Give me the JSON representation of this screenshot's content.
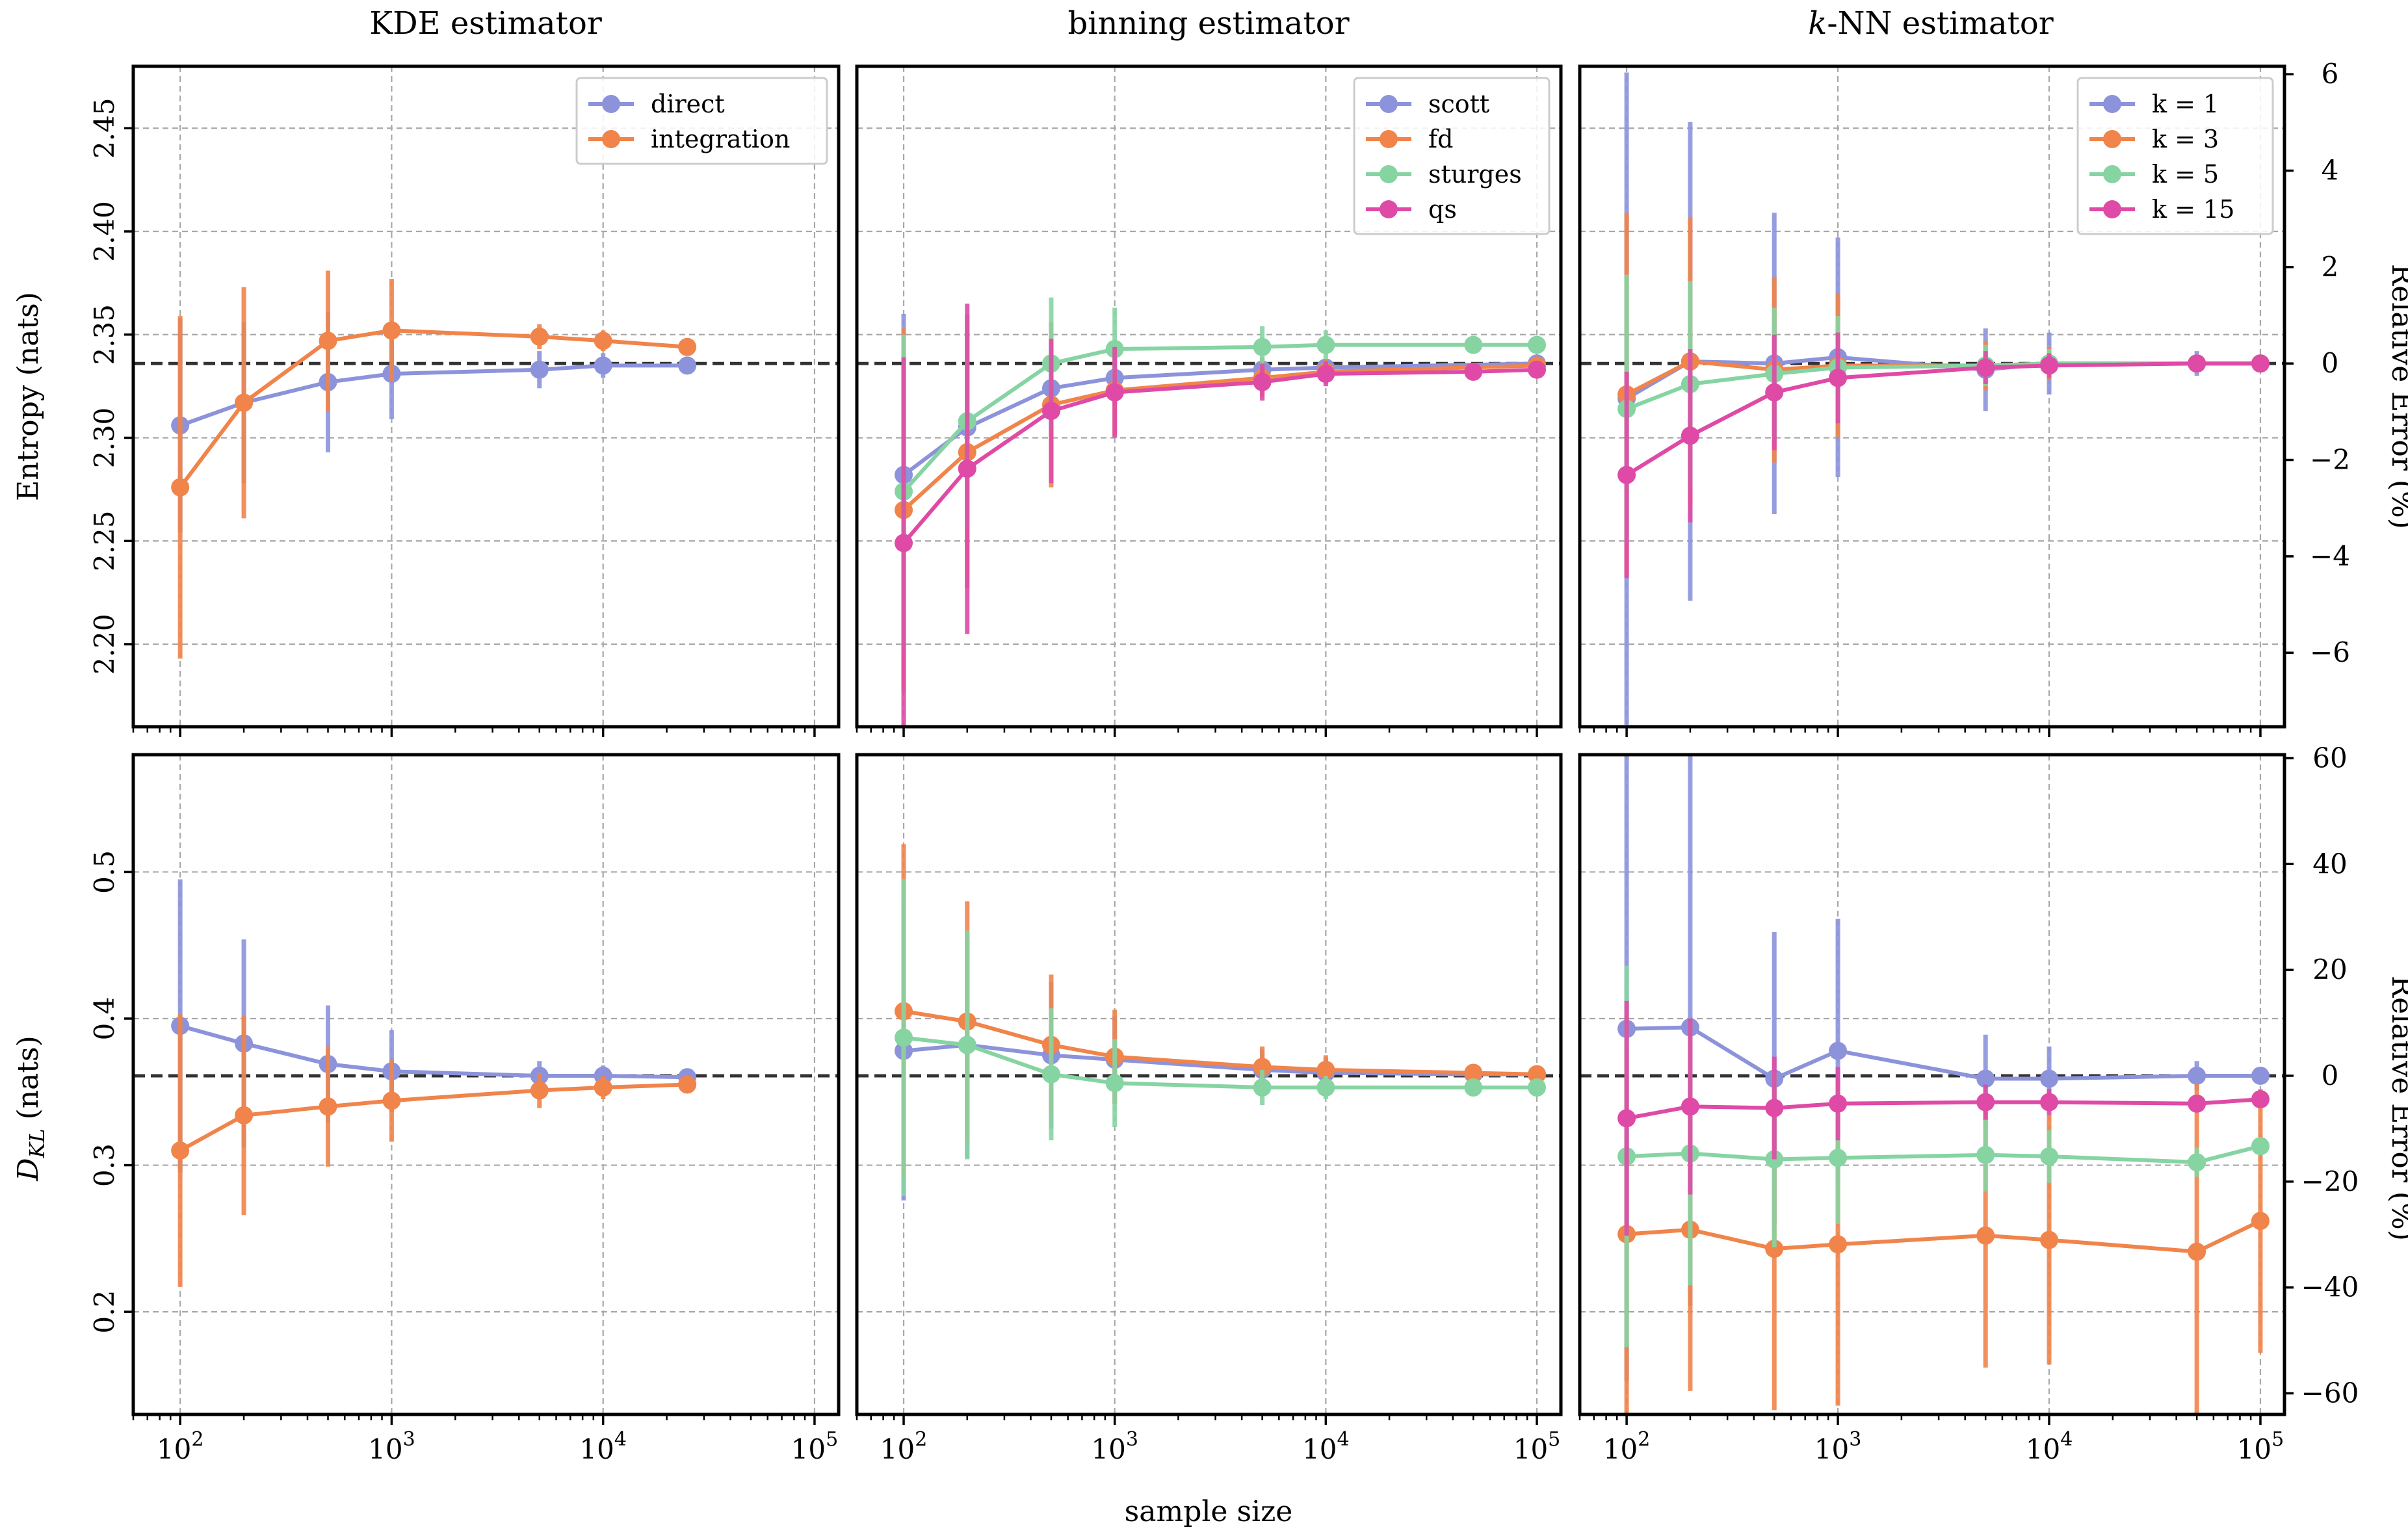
{
  "figure": {
    "column_titles": [
      "KDE estimator",
      "binning estimator",
      "k-NN estimator"
    ],
    "column_title_italic_prefix": [
      "",
      "",
      "k"
    ],
    "xlabel": "sample size",
    "row_ylabels": [
      "Entropy (nats)",
      "D_KL (nats)"
    ],
    "right_ylabel": "Relative Error (%)",
    "x_tick_labels": [
      "10^2",
      "10^3",
      "10^4",
      "10^5"
    ]
  },
  "colors": {
    "blue": "#8c93db",
    "orange": "#f0844a",
    "green": "#86d4a2",
    "magenta": "#de4aa6",
    "reference": "#333333",
    "grid": "#a8a8a8"
  },
  "chart_data": [
    {
      "type": "line",
      "id": "p00",
      "row": 0,
      "col": 0,
      "title": "KDE estimator",
      "ylabel": "Entropy (nats)",
      "xscale": "log",
      "xlim": [
        60,
        130000
      ],
      "ylim": [
        2.16,
        2.48
      ],
      "yticks": [
        2.2,
        2.25,
        2.3,
        2.35,
        2.4,
        2.45
      ],
      "ytick_labels": [
        "2.20",
        "2.25",
        "2.30",
        "2.35",
        "2.40",
        "2.45"
      ],
      "reference": 2.336,
      "legend": {
        "loc": "upper right",
        "entries": [
          "direct",
          "integration"
        ]
      },
      "series": [
        {
          "name": "direct",
          "color": "blue",
          "x": [
            100,
            200,
            500,
            1000,
            5000,
            10000,
            25000
          ],
          "y": [
            2.306,
            2.317,
            2.327,
            2.331,
            2.333,
            2.335,
            2.335
          ],
          "err": [
            0.052,
            0.039,
            0.034,
            0.022,
            0.009,
            0.006,
            0.003
          ]
        },
        {
          "name": "integration",
          "color": "orange",
          "x": [
            100,
            200,
            500,
            1000,
            5000,
            10000,
            25000
          ],
          "y": [
            2.276,
            2.317,
            2.347,
            2.352,
            2.349,
            2.347,
            2.344
          ],
          "err": [
            0.083,
            0.056,
            0.034,
            0.025,
            0.006,
            0.005,
            0.003
          ]
        }
      ]
    },
    {
      "type": "line",
      "id": "p01",
      "row": 0,
      "col": 1,
      "title": "binning estimator",
      "xscale": "log",
      "xlim": [
        60,
        130000
      ],
      "ylim": [
        2.16,
        2.48
      ],
      "reference": 2.336,
      "legend": {
        "loc": "upper right",
        "entries": [
          "scott",
          "fd",
          "sturges",
          "qs"
        ]
      },
      "series": [
        {
          "name": "scott",
          "color": "blue",
          "x": [
            100,
            200,
            500,
            1000,
            5000,
            10000,
            100000
          ],
          "y": [
            2.282,
            2.305,
            2.324,
            2.329,
            2.333,
            2.334,
            2.336
          ],
          "err": [
            0.078,
            0.045,
            0.022,
            0.013,
            0.006,
            0.004,
            0.002
          ]
        },
        {
          "name": "fd",
          "color": "orange",
          "x": [
            100,
            200,
            500,
            1000,
            5000,
            10000,
            100000
          ],
          "y": [
            2.265,
            2.293,
            2.316,
            2.323,
            2.329,
            2.332,
            2.335
          ],
          "err": [
            0.088,
            0.066,
            0.04,
            0.022,
            0.009,
            0.006,
            0.003
          ]
        },
        {
          "name": "sturges",
          "color": "green",
          "x": [
            100,
            200,
            500,
            1000,
            5000,
            10000,
            50000,
            100000
          ],
          "y": [
            2.274,
            2.308,
            2.336,
            2.343,
            2.344,
            2.345,
            2.345,
            2.345
          ],
          "err": [
            0.076,
            0.052,
            0.032,
            0.02,
            0.01,
            0.007,
            0.004,
            0.002
          ]
        },
        {
          "name": "qs",
          "color": "magenta",
          "x": [
            100,
            200,
            500,
            1000,
            5000,
            10000,
            50000,
            100000
          ],
          "y": [
            2.249,
            2.285,
            2.313,
            2.322,
            2.327,
            2.331,
            2.332,
            2.333
          ],
          "err": [
            0.09,
            0.08,
            0.035,
            0.022,
            0.009,
            0.006,
            0.004,
            0.003
          ]
        }
      ]
    },
    {
      "type": "line",
      "id": "p02",
      "row": 0,
      "col": 2,
      "title": "k-NN estimator",
      "xscale": "log",
      "xlim": [
        60,
        130000
      ],
      "ylim": [
        2.16,
        2.48
      ],
      "reference": 2.336,
      "right_axis": {
        "label": "Relative Error (%)",
        "yticks": [
          -6,
          -4,
          -2,
          0,
          2,
          4,
          6
        ],
        "ytick_labels": [
          "−6",
          "−4",
          "−2",
          "0",
          "2",
          "4",
          "6"
        ]
      },
      "legend": {
        "loc": "upper right",
        "entries": [
          "k = 1",
          "k = 3",
          "k = 5",
          "k = 15"
        ]
      },
      "series": [
        {
          "name": "k = 1",
          "color": "blue",
          "x": [
            100,
            200,
            500,
            1000,
            5000,
            10000,
            50000,
            100000
          ],
          "y": [
            2.319,
            2.337,
            2.336,
            2.339,
            2.333,
            2.336,
            2.336,
            2.336
          ],
          "err": [
            0.158,
            0.116,
            0.073,
            0.058,
            0.02,
            0.015,
            0.006,
            0.003
          ]
        },
        {
          "name": "k = 3",
          "color": "orange",
          "x": [
            100,
            200,
            500,
            1000,
            5000,
            10000,
            50000,
            100000
          ],
          "y": [
            2.321,
            2.337,
            2.333,
            2.335,
            2.335,
            2.336,
            2.336,
            2.336
          ],
          "err": [
            0.088,
            0.07,
            0.045,
            0.035,
            0.012,
            0.008,
            0.004,
            0.002
          ]
        },
        {
          "name": "k = 5",
          "color": "green",
          "x": [
            100,
            200,
            500,
            1000,
            5000,
            10000,
            50000,
            100000
          ],
          "y": [
            2.314,
            2.326,
            2.331,
            2.334,
            2.335,
            2.336,
            2.336,
            2.336
          ],
          "err": [
            0.065,
            0.05,
            0.032,
            0.025,
            0.01,
            0.007,
            0.003,
            0.002
          ]
        },
        {
          "name": "k = 15",
          "color": "magenta",
          "x": [
            100,
            200,
            500,
            1000,
            5000,
            10000,
            50000,
            100000
          ],
          "y": [
            2.282,
            2.301,
            2.322,
            2.329,
            2.334,
            2.335,
            2.336,
            2.336
          ],
          "err": [
            0.05,
            0.042,
            0.028,
            0.022,
            0.008,
            0.006,
            0.003,
            0.002
          ]
        }
      ]
    },
    {
      "type": "line",
      "id": "p10",
      "row": 1,
      "col": 0,
      "ylabel": "D_KL (nats)",
      "xscale": "log",
      "xlim": [
        60,
        130000
      ],
      "ylim": [
        0.13,
        0.58
      ],
      "yticks": [
        0.2,
        0.3,
        0.4,
        0.5
      ],
      "ytick_labels": [
        "0.2",
        "0.3",
        "0.4",
        "0.5"
      ],
      "reference": 0.361,
      "series": [
        {
          "name": "direct",
          "color": "blue",
          "x": [
            100,
            200,
            500,
            1000,
            5000,
            10000,
            25000
          ],
          "y": [
            0.395,
            0.383,
            0.369,
            0.364,
            0.361,
            0.361,
            0.36
          ],
          "err": [
            0.1,
            0.071,
            0.04,
            0.028,
            0.01,
            0.007,
            0.004
          ]
        },
        {
          "name": "integration",
          "color": "orange",
          "x": [
            100,
            200,
            500,
            1000,
            5000,
            10000,
            25000
          ],
          "y": [
            0.31,
            0.334,
            0.34,
            0.344,
            0.351,
            0.353,
            0.355
          ],
          "err": [
            0.093,
            0.068,
            0.041,
            0.028,
            0.012,
            0.008,
            0.004
          ]
        }
      ]
    },
    {
      "type": "line",
      "id": "p11",
      "row": 1,
      "col": 1,
      "xscale": "log",
      "xlim": [
        60,
        130000
      ],
      "ylim": [
        0.13,
        0.58
      ],
      "reference": 0.361,
      "series": [
        {
          "name": "scott",
          "color": "blue",
          "x": [
            100,
            200,
            500,
            1000,
            5000,
            10000,
            50000,
            100000
          ],
          "y": [
            0.378,
            0.382,
            0.375,
            0.372,
            0.365,
            0.363,
            0.362,
            0.362
          ],
          "err": [
            0.102,
            0.077,
            0.05,
            0.03,
            0.014,
            0.01,
            0.005,
            0.003
          ]
        },
        {
          "name": "fd",
          "color": "orange",
          "x": [
            100,
            200,
            500,
            1000,
            5000,
            10000,
            50000,
            100000
          ],
          "y": [
            0.405,
            0.398,
            0.382,
            0.374,
            0.367,
            0.365,
            0.363,
            0.362
          ],
          "err": [
            0.114,
            0.082,
            0.048,
            0.032,
            0.014,
            0.01,
            0.005,
            0.003
          ]
        },
        {
          "name": "sturges",
          "color": "green",
          "x": [
            100,
            200,
            500,
            1000,
            5000,
            10000,
            50000,
            100000
          ],
          "y": [
            0.387,
            0.382,
            0.362,
            0.356,
            0.353,
            0.353,
            0.353,
            0.353
          ],
          "err": [
            0.108,
            0.078,
            0.045,
            0.03,
            0.012,
            0.008,
            0.004,
            0.003
          ]
        }
      ]
    },
    {
      "type": "line",
      "id": "p12",
      "row": 1,
      "col": 2,
      "xscale": "log",
      "xlim": [
        60,
        130000
      ],
      "ylim": [
        0.13,
        0.58
      ],
      "reference": 0.361,
      "right_axis": {
        "label": "Relative Error (%)",
        "yticks": [
          -60,
          -40,
          -20,
          0,
          20,
          40,
          60
        ],
        "ytick_labels": [
          "−60",
          "−40",
          "−20",
          "0",
          "20",
          "40",
          "60"
        ]
      },
      "series": [
        {
          "name": "k = 1",
          "color": "blue",
          "x": [
            100,
            200,
            500,
            1000,
            5000,
            10000,
            50000,
            100000
          ],
          "y": [
            0.393,
            0.394,
            0.359,
            0.378,
            0.359,
            0.359,
            0.361,
            0.361
          ],
          "err": [
            0.24,
            0.19,
            0.1,
            0.09,
            0.03,
            0.022,
            0.01,
            0.006
          ]
        },
        {
          "name": "k = 3",
          "color": "orange",
          "x": [
            100,
            200,
            500,
            1000,
            5000,
            10000,
            50000,
            100000
          ],
          "y": [
            0.253,
            0.256,
            0.243,
            0.246,
            0.252,
            0.249,
            0.241,
            0.262
          ],
          "err": [
            0.125,
            0.11,
            0.11,
            0.11,
            0.09,
            0.085,
            0.115,
            0.09
          ]
        },
        {
          "name": "k = 5",
          "color": "green",
          "x": [
            100,
            200,
            500,
            1000,
            5000,
            10000,
            50000,
            100000
          ],
          "y": [
            0.306,
            0.308,
            0.304,
            0.305,
            0.307,
            0.306,
            0.302,
            0.313
          ],
          "err": [
            0.13,
            0.09,
            0.06,
            0.045,
            0.025,
            0.018,
            0.01,
            0.006
          ]
        },
        {
          "name": "k = 15",
          "color": "magenta",
          "x": [
            100,
            200,
            500,
            1000,
            5000,
            10000,
            50000,
            100000
          ],
          "y": [
            0.332,
            0.34,
            0.339,
            0.342,
            0.343,
            0.343,
            0.342,
            0.345
          ],
          "err": [
            0.08,
            0.06,
            0.035,
            0.025,
            0.012,
            0.009,
            0.005,
            0.003
          ]
        }
      ]
    }
  ]
}
